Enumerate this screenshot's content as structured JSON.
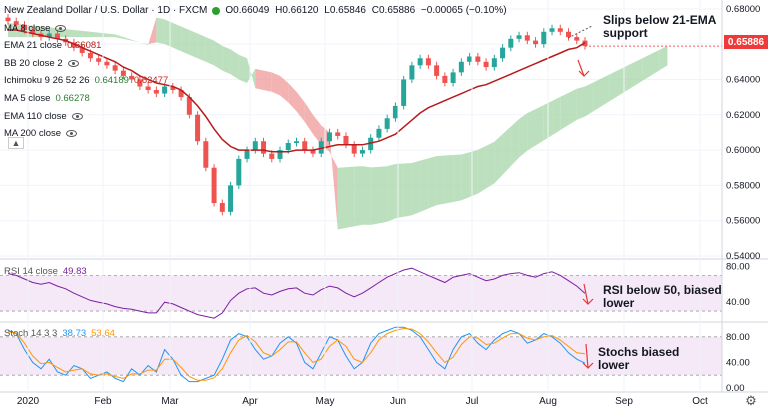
{
  "header": {
    "title": "New Zealand Dollar / U.S. Dollar · 1D · FXCM",
    "ohlc": {
      "o": "O0.66049",
      "h": "H0.66120",
      "l": "L0.65846",
      "c": "C0.65886",
      "chg": "−0.00065 (−0.10%)"
    }
  },
  "legend": [
    {
      "label": "MA 8 close",
      "value": ""
    },
    {
      "label": "EMA 21 close",
      "value": "0.66081"
    },
    {
      "label": "BB 20 close 2",
      "value": ""
    },
    {
      "label": "Ichimoku 9 26 52 26",
      "value": "0.64189",
      "value2": "0.62477"
    },
    {
      "label": "MA 5 close",
      "value": "0.66278"
    },
    {
      "label": "EMA 110 close",
      "value": ""
    },
    {
      "label": "MA 200 close",
      "value": ""
    }
  ],
  "collapse_icon": "chevron-up",
  "price_axis": {
    "labels": [
      "0.68000",
      "0.66000",
      "0.64000",
      "0.62000",
      "0.60000",
      "0.58000",
      "0.56000",
      "0.54000"
    ],
    "current": "0.65886"
  },
  "rsi": {
    "label": "RSI 14 close",
    "value": "49.83",
    "axis": [
      "80.00",
      "40.00"
    ]
  },
  "stoch": {
    "label": "Stoch 14 3 3",
    "k": "38.73",
    "d": "53.64",
    "axis": [
      "80.00",
      "40.00",
      "0.00"
    ]
  },
  "time_axis": [
    "2020",
    "Feb",
    "Mar",
    "Apr",
    "May",
    "Jun",
    "Jul",
    "Aug",
    "Sep",
    "Oct"
  ],
  "annotations": {
    "price": "Slips below 21-EMA support",
    "rsi": "RSI below 50, biased lower",
    "stoch": "Stochs biased lower"
  },
  "colors": {
    "up": "#26a69a",
    "down": "#ef5350",
    "ema": "#b71c1c",
    "rsi": "#7b1fa2",
    "stoch_k": "#2196f3",
    "stoch_d": "#ff9800",
    "cloud_bull": "#a5d6a7",
    "cloud_bear": "#ef9a9a",
    "arrow": "#e53935",
    "band": "#e1bee7"
  },
  "chart_data": [
    {
      "type": "candlestick",
      "title": "New Zealand Dollar / U.S. Dollar · 1D · FXCM",
      "ylim": [
        0.54,
        0.685
      ],
      "close": [
        0.673,
        0.671,
        0.668,
        0.666,
        0.664,
        0.666,
        0.663,
        0.661,
        0.658,
        0.655,
        0.652,
        0.65,
        0.648,
        0.645,
        0.642,
        0.64,
        0.636,
        0.634,
        0.632,
        0.636,
        0.634,
        0.63,
        0.62,
        0.605,
        0.59,
        0.57,
        0.565,
        0.58,
        0.595,
        0.6,
        0.605,
        0.598,
        0.595,
        0.6,
        0.604,
        0.605,
        0.6,
        0.598,
        0.605,
        0.61,
        0.608,
        0.603,
        0.598,
        0.6,
        0.607,
        0.612,
        0.618,
        0.625,
        0.64,
        0.648,
        0.652,
        0.648,
        0.642,
        0.638,
        0.644,
        0.65,
        0.653,
        0.65,
        0.647,
        0.652,
        0.658,
        0.663,
        0.665,
        0.662,
        0.66,
        0.667,
        0.669,
        0.667,
        0.664,
        0.662,
        0.6589
      ],
      "ema21": [
        0.668,
        0.668,
        0.667,
        0.666,
        0.665,
        0.664,
        0.663,
        0.662,
        0.66,
        0.658,
        0.656,
        0.654,
        0.652,
        0.65,
        0.647,
        0.645,
        0.642,
        0.64,
        0.638,
        0.637,
        0.636,
        0.634,
        0.63,
        0.625,
        0.619,
        0.612,
        0.606,
        0.602,
        0.6,
        0.6,
        0.6,
        0.6,
        0.599,
        0.599,
        0.599,
        0.6,
        0.6,
        0.6,
        0.601,
        0.602,
        0.603,
        0.603,
        0.603,
        0.603,
        0.604,
        0.605,
        0.607,
        0.609,
        0.613,
        0.617,
        0.621,
        0.624,
        0.626,
        0.628,
        0.63,
        0.632,
        0.634,
        0.636,
        0.637,
        0.639,
        0.641,
        0.643,
        0.645,
        0.647,
        0.649,
        0.651,
        0.653,
        0.655,
        0.657,
        0.658,
        0.6608
      ]
    },
    {
      "type": "line",
      "title": "RSI 14 close",
      "ylim": [
        20,
        85
      ],
      "values": [
        72,
        70,
        66,
        62,
        60,
        62,
        58,
        55,
        50,
        46,
        42,
        40,
        38,
        35,
        33,
        32,
        30,
        28,
        28,
        40,
        38,
        34,
        30,
        26,
        24,
        22,
        28,
        42,
        50,
        55,
        56,
        50,
        48,
        52,
        55,
        56,
        50,
        48,
        54,
        58,
        56,
        50,
        46,
        50,
        56,
        62,
        68,
        72,
        76,
        78,
        74,
        70,
        66,
        62,
        68,
        70,
        72,
        68,
        64,
        66,
        70,
        72,
        73,
        70,
        68,
        72,
        74,
        70,
        64,
        58,
        49.83
      ]
    },
    {
      "type": "line",
      "title": "Stoch 14 3 3",
      "ylim": [
        0,
        100
      ],
      "series": [
        {
          "name": "%K",
          "values": [
            90,
            85,
            60,
            40,
            30,
            45,
            25,
            20,
            35,
            30,
            15,
            20,
            25,
            15,
            10,
            30,
            20,
            35,
            25,
            60,
            45,
            20,
            10,
            10,
            15,
            20,
            45,
            75,
            85,
            80,
            60,
            45,
            50,
            70,
            80,
            70,
            40,
            30,
            55,
            80,
            75,
            50,
            30,
            40,
            70,
            85,
            90,
            95,
            95,
            90,
            80,
            60,
            40,
            30,
            60,
            80,
            85,
            70,
            60,
            75,
            85,
            90,
            85,
            70,
            75,
            85,
            80,
            70,
            55,
            45,
            38.73
          ]
        },
        {
          "name": "%D",
          "values": [
            88,
            86,
            70,
            50,
            38,
            40,
            32,
            25,
            28,
            30,
            22,
            20,
            22,
            18,
            15,
            22,
            22,
            28,
            28,
            45,
            45,
            32,
            18,
            12,
            12,
            16,
            30,
            55,
            75,
            82,
            72,
            55,
            50,
            60,
            72,
            72,
            55,
            40,
            45,
            65,
            75,
            65,
            45,
            40,
            55,
            75,
            85,
            90,
            93,
            92,
            85,
            72,
            55,
            40,
            48,
            68,
            80,
            78,
            68,
            70,
            78,
            85,
            85,
            78,
            75,
            80,
            82,
            75,
            65,
            55,
            53.64
          ]
        }
      ]
    }
  ]
}
